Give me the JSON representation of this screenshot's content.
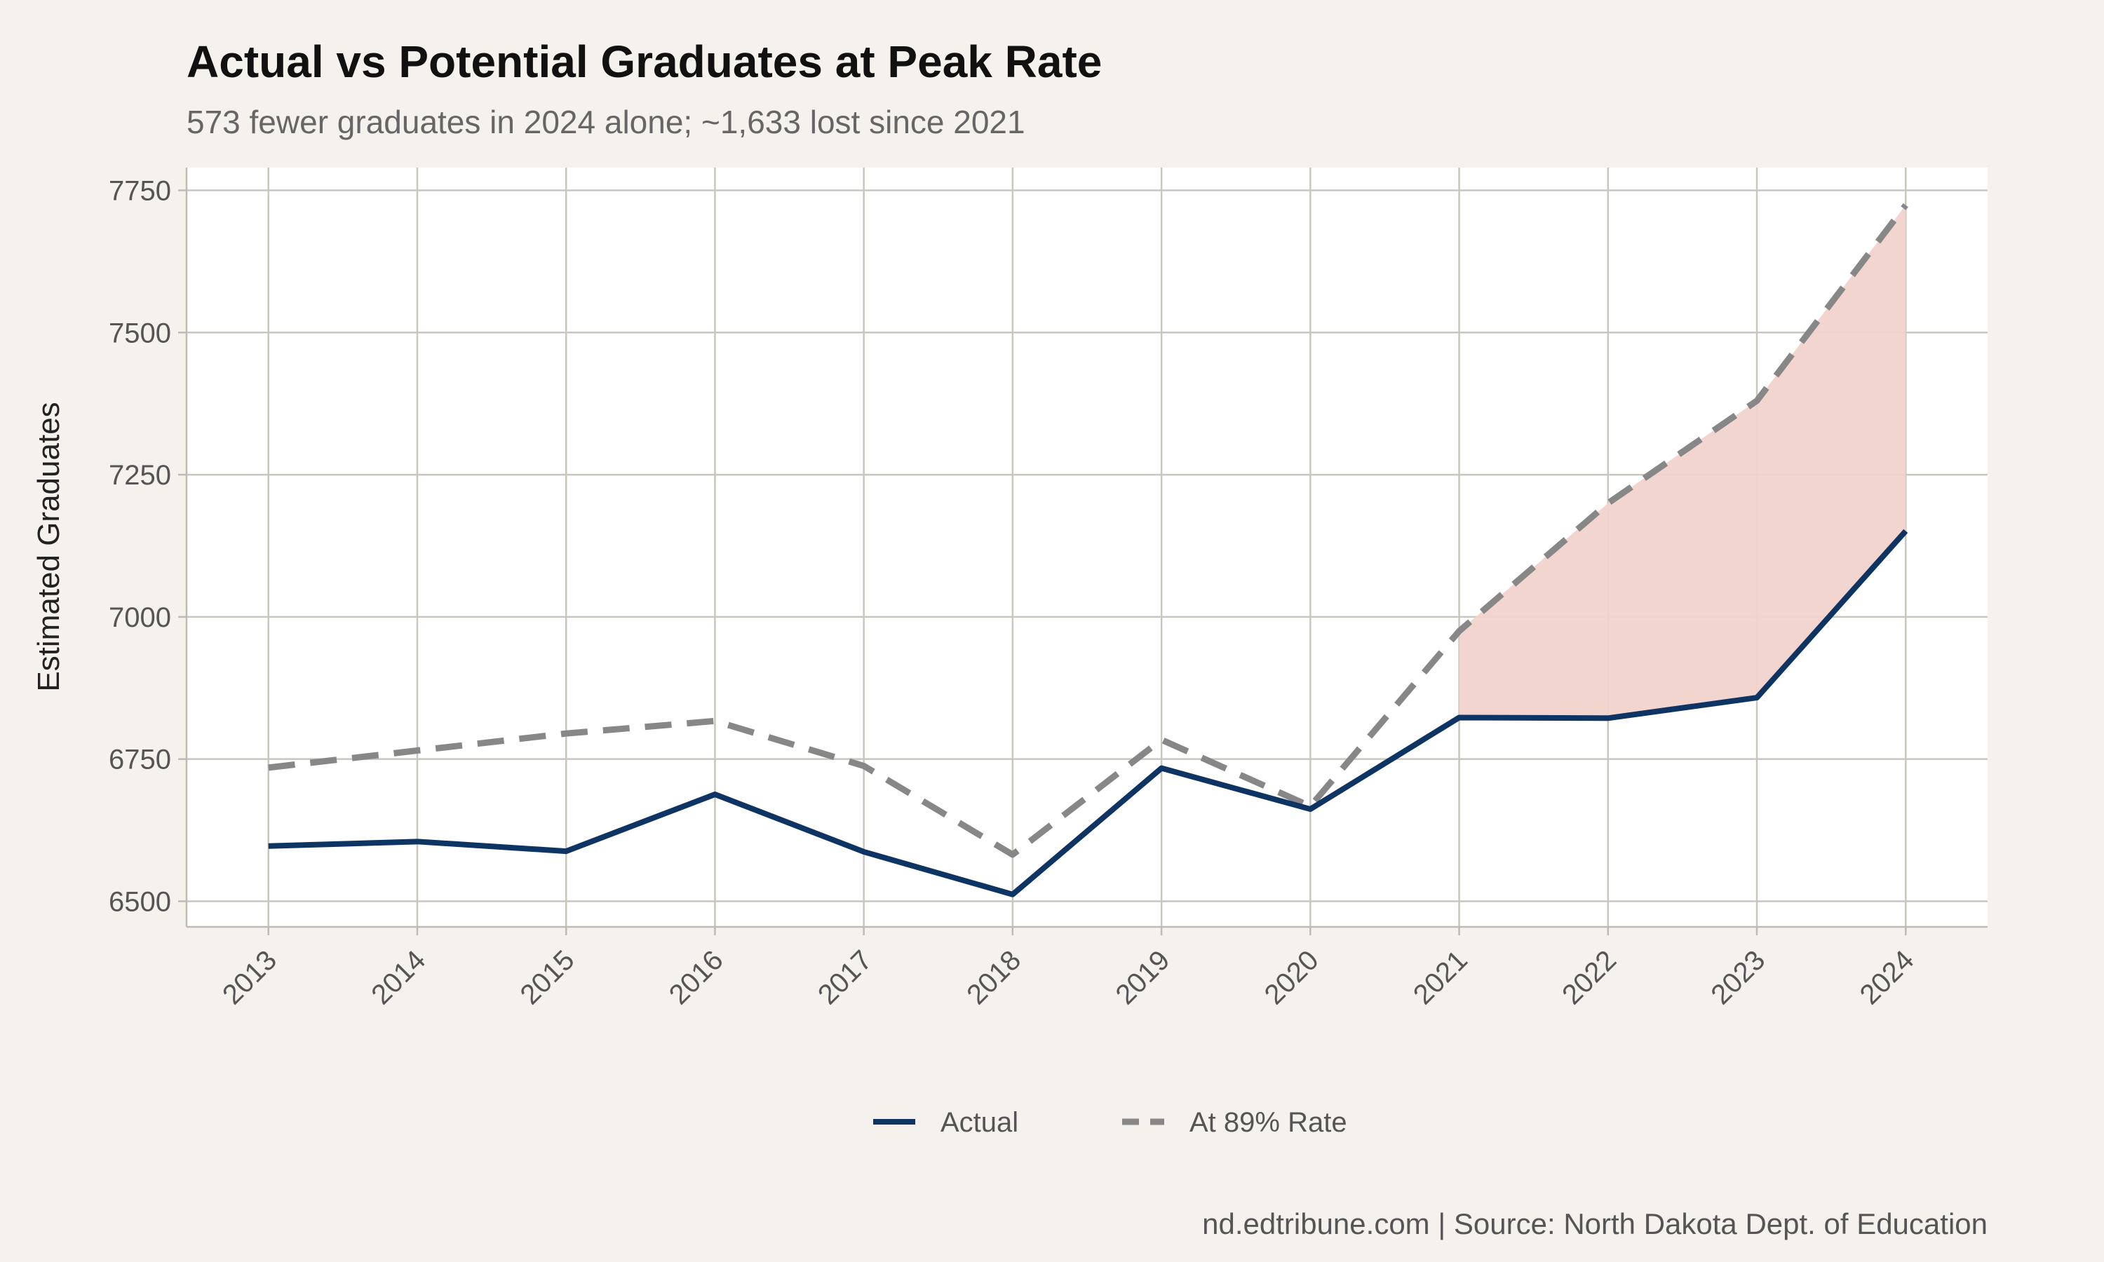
{
  "chart_data": {
    "type": "line",
    "title": "Actual vs Potential Graduates at Peak Rate",
    "subtitle": "573 fewer graduates in 2024 alone; ~1,633 lost since 2021",
    "caption": "nd.edtribune.com | Source: North Dakota Dept. of Education",
    "xlabel": "",
    "ylabel": "Estimated Graduates",
    "x": [
      2013,
      2014,
      2015,
      2016,
      2017,
      2018,
      2019,
      2020,
      2021,
      2022,
      2023,
      2024
    ],
    "x_tick_labels": [
      "2013",
      "2014",
      "2015",
      "2016",
      "2017",
      "2018",
      "2019",
      "2020",
      "2021",
      "2022",
      "2023",
      "2024"
    ],
    "y_ticks": [
      6500,
      6750,
      7000,
      7250,
      7500,
      7750
    ],
    "y_tick_labels": [
      "6500",
      "6750",
      "7000",
      "7250",
      "7500",
      "7750"
    ],
    "xlim": [
      2012.45,
      2024.55
    ],
    "ylim": [
      6455,
      7790
    ],
    "grid": true,
    "legend_position": "bottom",
    "series": [
      {
        "name": "Actual",
        "style": "solid",
        "color": "#0D3463",
        "values": [
          6597,
          6605,
          6588,
          6688,
          6587,
          6512,
          6734,
          6662,
          6823,
          6822,
          6858,
          7151
        ]
      },
      {
        "name": "At 89% Rate",
        "style": "dashed",
        "color": "#878787",
        "values": [
          6735,
          6765,
          6795,
          6817,
          6738,
          6582,
          6784,
          6667,
          6975,
          7200,
          7380,
          7724
        ]
      }
    ],
    "shaded_gap": {
      "from": 2021,
      "to": 2024,
      "color": "#F2D3CC"
    }
  }
}
